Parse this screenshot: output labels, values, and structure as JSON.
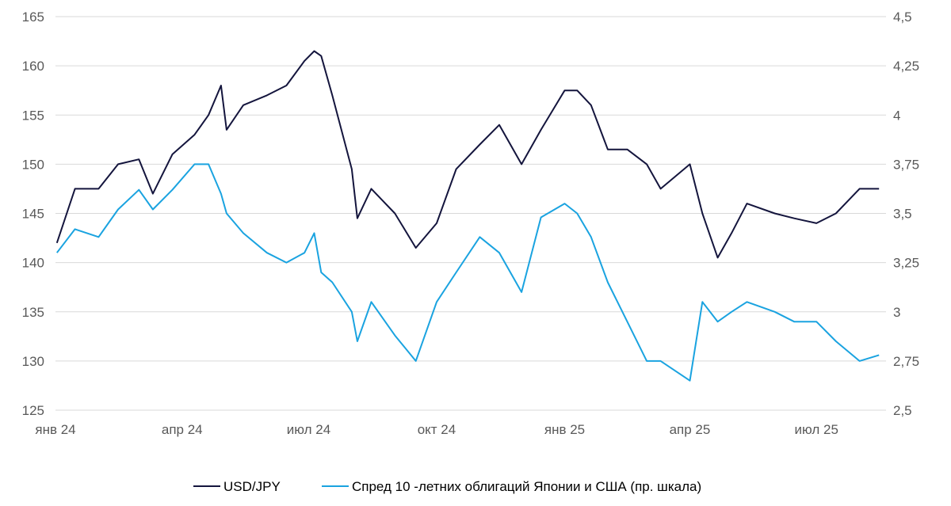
{
  "chart_data": {
    "type": "line",
    "title": "",
    "xlabel": "",
    "ylabel": "",
    "x_tick_labels": [
      "янв 24",
      "апр 24",
      "июл 24",
      "окт 24",
      "янв 25",
      "апр 25",
      "июл 25"
    ],
    "y_left": {
      "ylim": [
        125,
        165
      ],
      "ticks": [
        "125",
        "130",
        "135",
        "140",
        "145",
        "150",
        "155",
        "160",
        "165"
      ]
    },
    "y_right": {
      "ylim": [
        2.5,
        4.5
      ],
      "ticks": [
        "2,5",
        "2,75",
        "3",
        "3,25",
        "3,5",
        "3,75",
        "4",
        "4,25",
        "4,5"
      ]
    },
    "grid": true,
    "legend_position": "bottom",
    "x": [
      "2024-01-02",
      "2024-01-15",
      "2024-02-01",
      "2024-02-15",
      "2024-03-01",
      "2024-03-11",
      "2024-03-25",
      "2024-04-10",
      "2024-04-20",
      "2024-04-29",
      "2024-05-03",
      "2024-05-15",
      "2024-06-01",
      "2024-06-15",
      "2024-06-28",
      "2024-07-05",
      "2024-07-10",
      "2024-07-18",
      "2024-08-01",
      "2024-08-05",
      "2024-08-15",
      "2024-09-01",
      "2024-09-16",
      "2024-10-01",
      "2024-10-15",
      "2024-11-01",
      "2024-11-15",
      "2024-12-01",
      "2024-12-15",
      "2025-01-01",
      "2025-01-10",
      "2025-01-20",
      "2025-02-01",
      "2025-02-15",
      "2025-03-01",
      "2025-03-11",
      "2025-04-01",
      "2025-04-10",
      "2025-04-21",
      "2025-05-01",
      "2025-05-12",
      "2025-06-01",
      "2025-06-15",
      "2025-07-01",
      "2025-07-15",
      "2025-08-01",
      "2025-08-15"
    ],
    "series": [
      {
        "name": "USD/JPY",
        "axis": "left",
        "color": "#14153d",
        "values": [
          142,
          147.5,
          147.5,
          150,
          150.5,
          147,
          151,
          153,
          155,
          158,
          153.5,
          156,
          157,
          158,
          160.5,
          161.5,
          161,
          157,
          149.5,
          144.5,
          147.5,
          145,
          141.5,
          144,
          149.5,
          152,
          154,
          150,
          153.5,
          157.5,
          157.5,
          156,
          151.5,
          151.5,
          150,
          147.5,
          150,
          145,
          140.5,
          143,
          146,
          145,
          144.5,
          144,
          145,
          147.5,
          147.5
        ]
      },
      {
        "name": "Спред 10 -летних облигаций Японии и США (пр. шкала)",
        "axis": "right",
        "color": "#1aa3e0",
        "values": [
          3.3,
          3.42,
          3.38,
          3.52,
          3.62,
          3.52,
          3.62,
          3.75,
          3.75,
          3.6,
          3.5,
          3.4,
          3.3,
          3.25,
          3.3,
          3.4,
          3.2,
          3.15,
          3.0,
          2.85,
          3.05,
          2.88,
          2.75,
          3.05,
          3.2,
          3.38,
          3.3,
          3.1,
          3.48,
          3.55,
          3.5,
          3.38,
          3.15,
          2.95,
          2.75,
          2.75,
          2.65,
          3.05,
          2.95,
          3.0,
          3.05,
          3.0,
          2.95,
          2.95,
          2.85,
          2.75,
          2.78
        ]
      }
    ]
  },
  "legend": {
    "usd_jpy": "USD/JPY",
    "spread": "Спред 10 -летних облигаций Японии и США (пр. шкала)"
  }
}
